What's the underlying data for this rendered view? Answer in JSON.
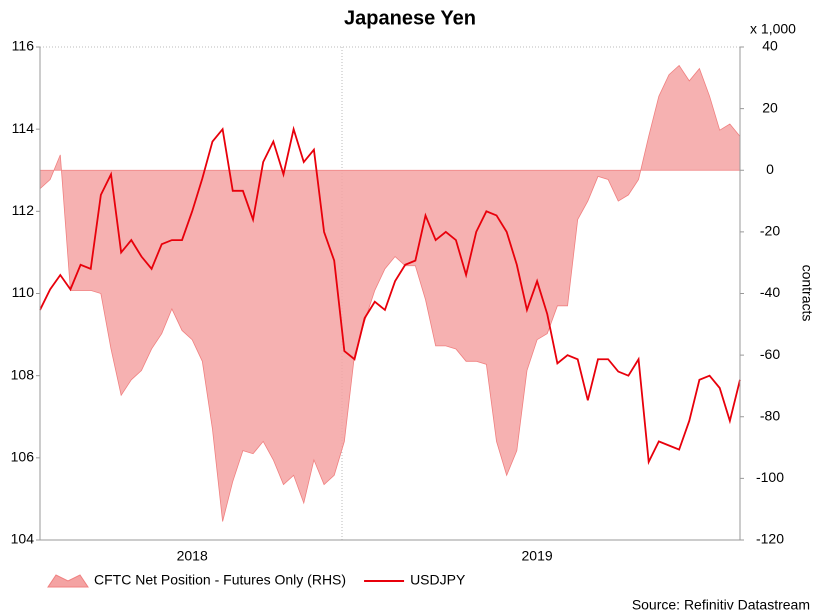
{
  "chart_data": {
    "type": "line",
    "title": "Japanese Yen",
    "y2_unit": "x 1,000",
    "y2label": "contracts",
    "source": "Source: Refinitiv Datastream",
    "xlim": [
      0,
      69
    ],
    "xticks": [
      {
        "value": 15,
        "label": "2018"
      },
      {
        "value": 49,
        "label": "2019"
      }
    ],
    "ylim": [
      104,
      116
    ],
    "yticks": [
      104,
      106,
      108,
      110,
      112,
      114,
      116
    ],
    "y2lim": [
      -120,
      40
    ],
    "y2ticks": [
      -120,
      -100,
      -80,
      -60,
      -40,
      -20,
      0,
      20,
      40
    ],
    "series": [
      {
        "name": "CFTC Net Position - Futures Only (RHS)",
        "type": "area",
        "axis": "y2",
        "color": "#f4a3a3",
        "values": [
          -6,
          -3,
          5,
          -39,
          -39,
          -39,
          -40,
          -58,
          -73,
          -68,
          -65,
          -58,
          -53,
          -45,
          -52,
          -55,
          -62,
          -84,
          -114,
          -101,
          -91,
          -92,
          -88,
          -94,
          -102,
          -99,
          -108,
          -94,
          -102,
          -99,
          -88,
          -60,
          -49,
          -39,
          -32,
          -28,
          -31,
          -31,
          -42,
          -57,
          -57,
          -58,
          -62,
          -62,
          -63,
          -88,
          -99,
          -91,
          -65,
          -55,
          -53,
          -44,
          -44,
          -16,
          -10,
          -2,
          -3,
          -10,
          -8,
          -3,
          11,
          24,
          31,
          34,
          29,
          33,
          24,
          13,
          15,
          11
        ]
      },
      {
        "name": "USDJPY",
        "type": "line",
        "color": "#e8000b",
        "values": [
          109.6,
          110.1,
          110.45,
          110.1,
          110.7,
          110.6,
          112.4,
          112.9,
          111.0,
          111.3,
          110.9,
          110.6,
          111.2,
          111.3,
          111.3,
          112.0,
          112.8,
          113.7,
          114.0,
          112.5,
          112.5,
          111.8,
          113.2,
          113.7,
          112.9,
          114.0,
          113.2,
          113.5,
          111.5,
          110.8,
          108.6,
          108.4,
          109.4,
          109.8,
          109.6,
          110.3,
          110.7,
          110.8,
          111.9,
          111.3,
          111.5,
          111.3,
          110.45,
          111.5,
          112.0,
          111.9,
          111.5,
          110.7,
          109.6,
          110.3,
          109.5,
          108.3,
          108.5,
          108.4,
          107.4,
          108.4,
          108.4,
          108.1,
          108.0,
          108.4,
          105.9,
          106.4,
          106.3,
          106.2,
          106.9,
          107.9,
          108.0,
          107.7,
          106.9,
          107.9
        ]
      }
    ]
  }
}
